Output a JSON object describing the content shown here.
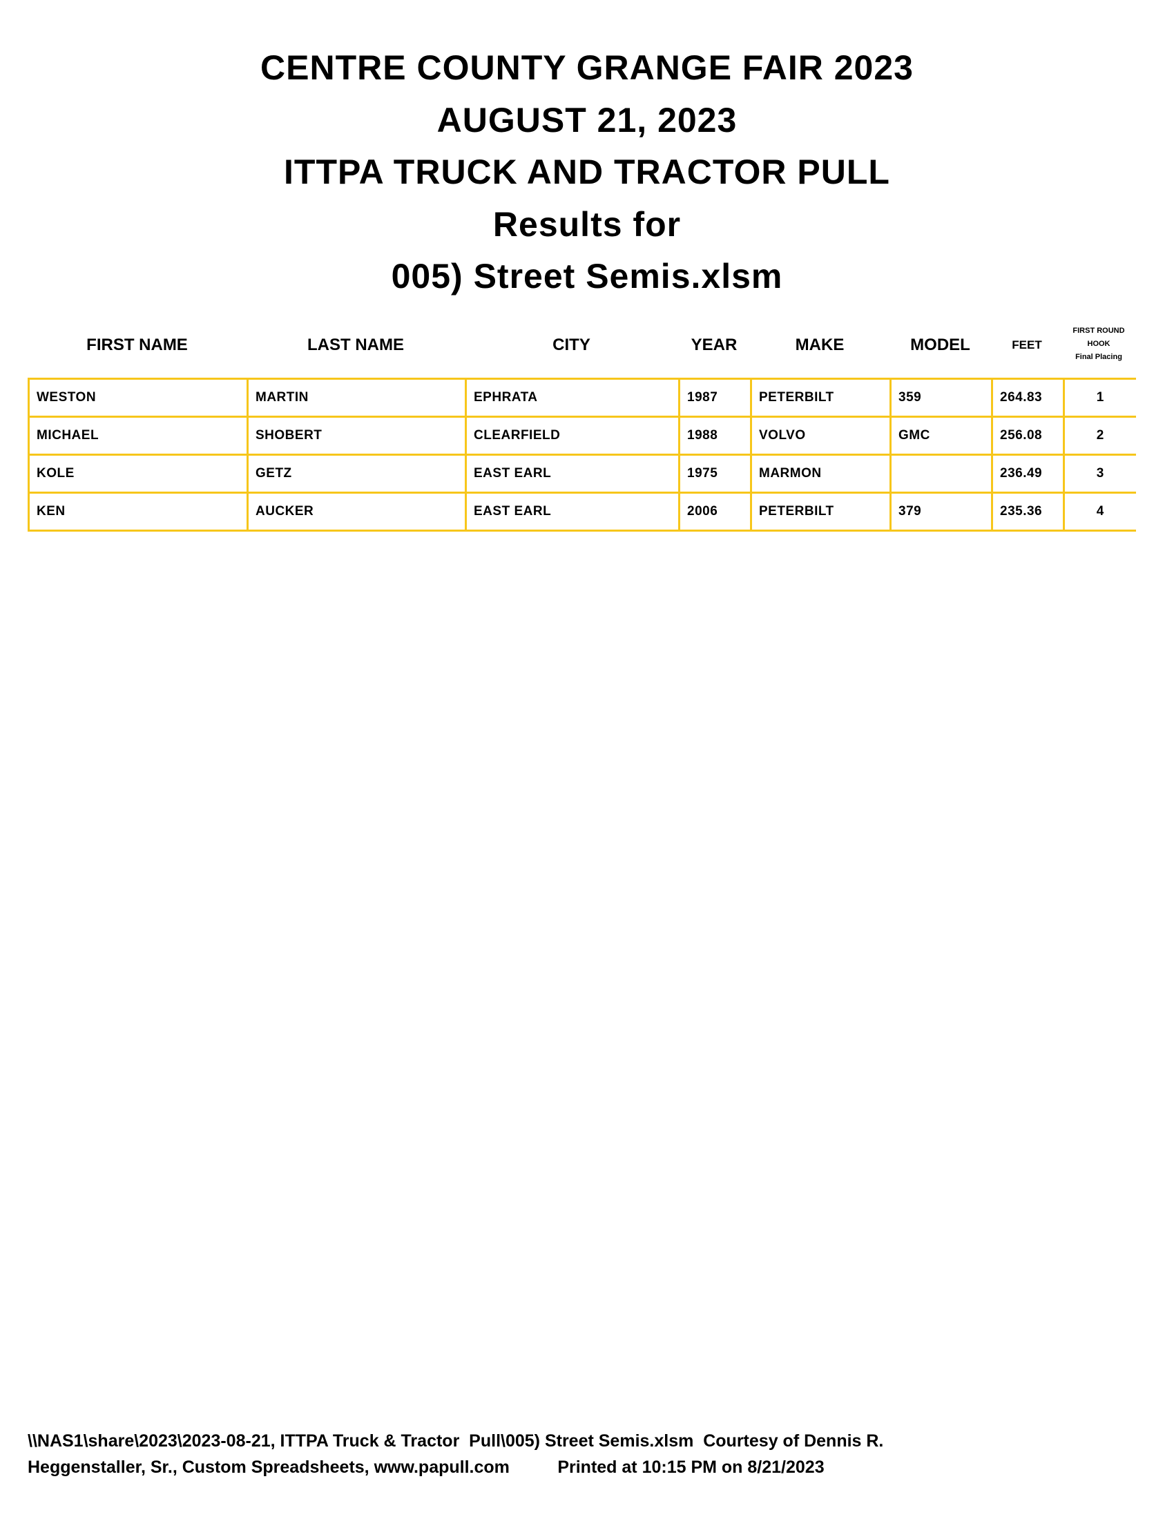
{
  "header": {
    "lines": [
      "CENTRE COUNTY GRANGE FAIR 2023",
      "AUGUST 21, 2023",
      "ITTPA TRUCK AND TRACTOR PULL",
      "Results for",
      "005) Street Semis.xlsm"
    ]
  },
  "table": {
    "columns": [
      "FIRST NAME",
      "LAST NAME",
      "CITY",
      "YEAR",
      "MAKE",
      "MODEL",
      "FEET"
    ],
    "last_column": [
      "FIRST ROUND",
      "HOOK",
      "Final Placing"
    ],
    "rows": [
      [
        "WESTON",
        "MARTIN",
        "EPHRATA",
        "1987",
        "PETERBILT",
        "359",
        "264.83",
        "1"
      ],
      [
        "MICHAEL",
        "SHOBERT",
        "CLEARFIELD",
        "1988",
        "VOLVO",
        "GMC",
        "256.08",
        "2"
      ],
      [
        "KOLE",
        "GETZ",
        "EAST EARL",
        "1975",
        "MARMON",
        "",
        "236.49",
        "3"
      ],
      [
        "KEN",
        "AUCKER",
        "EAST EARL",
        "2006",
        "PETERBILT",
        "379",
        "235.36",
        "4"
      ]
    ],
    "border_color": "#f7c61b"
  },
  "footer": {
    "line1": "\\\\NAS1\\share\\2023\\2023-08-21, ITTPA Truck & Tractor  Pull\\005) Street Semis.xlsm  Courtesy of Dennis R.",
    "line2": "Heggenstaller, Sr., Custom Spreadsheets, www.papull.com          Printed at 10:15 PM on 8/21/2023"
  }
}
